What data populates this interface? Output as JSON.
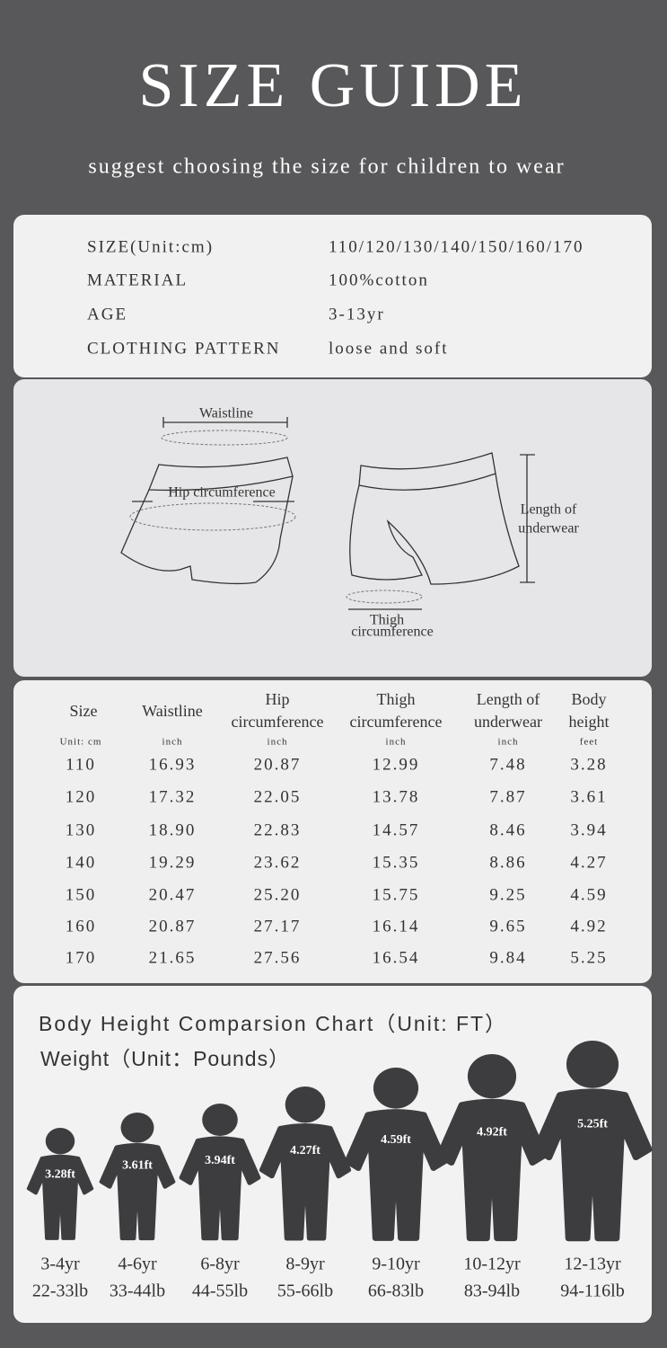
{
  "header": {
    "title": "SIZE GUIDE",
    "subtitle": "suggest choosing the size for children to wear"
  },
  "specs": {
    "rows": [
      [
        "SIZE(Unit:cm)",
        "110/120/130/140/150/160/170"
      ],
      [
        "MATERIAL",
        "100%cotton"
      ],
      [
        "AGE",
        "3-13yr"
      ],
      [
        "CLOTHING PATTERN",
        "loose and soft"
      ]
    ]
  },
  "diagram": {
    "waistline": "Waistline",
    "hip": "Hip circumference",
    "length": [
      "Length of",
      "underwear"
    ],
    "thigh": [
      "Thigh",
      "circumference"
    ]
  },
  "table": {
    "headers": [
      [
        "Size"
      ],
      [
        "Waistline"
      ],
      [
        "Hip",
        "circumference"
      ],
      [
        "Thigh",
        "circumference"
      ],
      [
        "Length of",
        "underwear"
      ],
      [
        "Body",
        "height"
      ]
    ],
    "units": [
      "Unit: cm",
      "inch",
      "inch",
      "inch",
      "inch",
      "feet"
    ],
    "rows": [
      [
        "110",
        "16.93",
        "20.87",
        "12.99",
        "7.48",
        "3.28"
      ],
      [
        "120",
        "17.32",
        "22.05",
        "13.78",
        "7.87",
        "3.61"
      ],
      [
        "130",
        "18.90",
        "22.83",
        "14.57",
        "8.46",
        "3.94"
      ],
      [
        "140",
        "19.29",
        "23.62",
        "15.35",
        "8.86",
        "4.27"
      ],
      [
        "150",
        "20.47",
        "25.20",
        "15.75",
        "9.25",
        "4.59"
      ],
      [
        "160",
        "20.87",
        "27.17",
        "16.14",
        "9.65",
        "4.92"
      ],
      [
        "170",
        "21.65",
        "27.56",
        "16.54",
        "9.84",
        "5.25"
      ]
    ]
  },
  "heights": {
    "title": "Body Height Comparsion Chart（Unit: FT）",
    "subtitle": "Weight（Unit：Pounds）",
    "figures": [
      {
        "height": "3.28ft",
        "age": "3-4yr",
        "weight": "22-33lb"
      },
      {
        "height": "3.61ft",
        "age": "4-6yr",
        "weight": "33-44lb"
      },
      {
        "height": "3.94ft",
        "age": "6-8yr",
        "weight": "44-55lb"
      },
      {
        "height": "4.27ft",
        "age": "8-9yr",
        "weight": "55-66lb"
      },
      {
        "height": "4.59ft",
        "age": "9-10yr",
        "weight": "66-83lb"
      },
      {
        "height": "4.92ft",
        "age": "10-12yr",
        "weight": "83-94lb"
      },
      {
        "height": "5.25ft",
        "age": "12-13yr",
        "weight": "94-116lb"
      }
    ]
  }
}
